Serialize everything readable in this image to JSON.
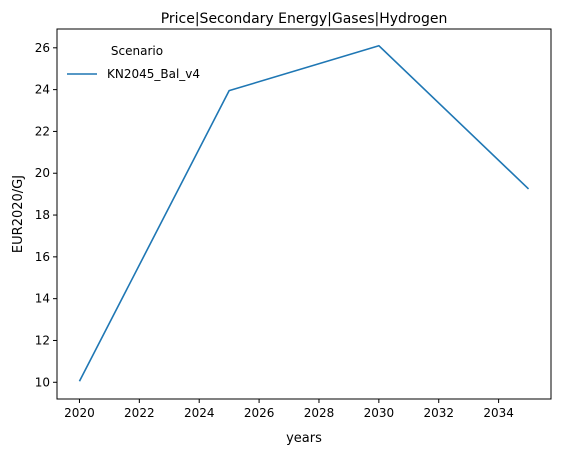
{
  "chart_data": {
    "type": "line",
    "title": "Price|Secondary Energy|Gases|Hydrogen",
    "xlabel": "years",
    "ylabel": "EUR2020/GJ",
    "xlim": [
      2019.25,
      2035.75
    ],
    "ylim": [
      9.2,
      26.9
    ],
    "x_ticks": [
      2020,
      2022,
      2024,
      2026,
      2028,
      2030,
      2032,
      2034
    ],
    "y_ticks": [
      10,
      12,
      14,
      16,
      18,
      20,
      22,
      24,
      26
    ],
    "grid": false,
    "legend": {
      "title": "Scenario",
      "placement": "top-left"
    },
    "series": [
      {
        "name": "KN2045_Bal_v4",
        "color": "#1f77b4",
        "x": [
          2020,
          2025,
          2030,
          2035
        ],
        "y": [
          10.05,
          23.95,
          26.1,
          19.25
        ]
      }
    ]
  }
}
